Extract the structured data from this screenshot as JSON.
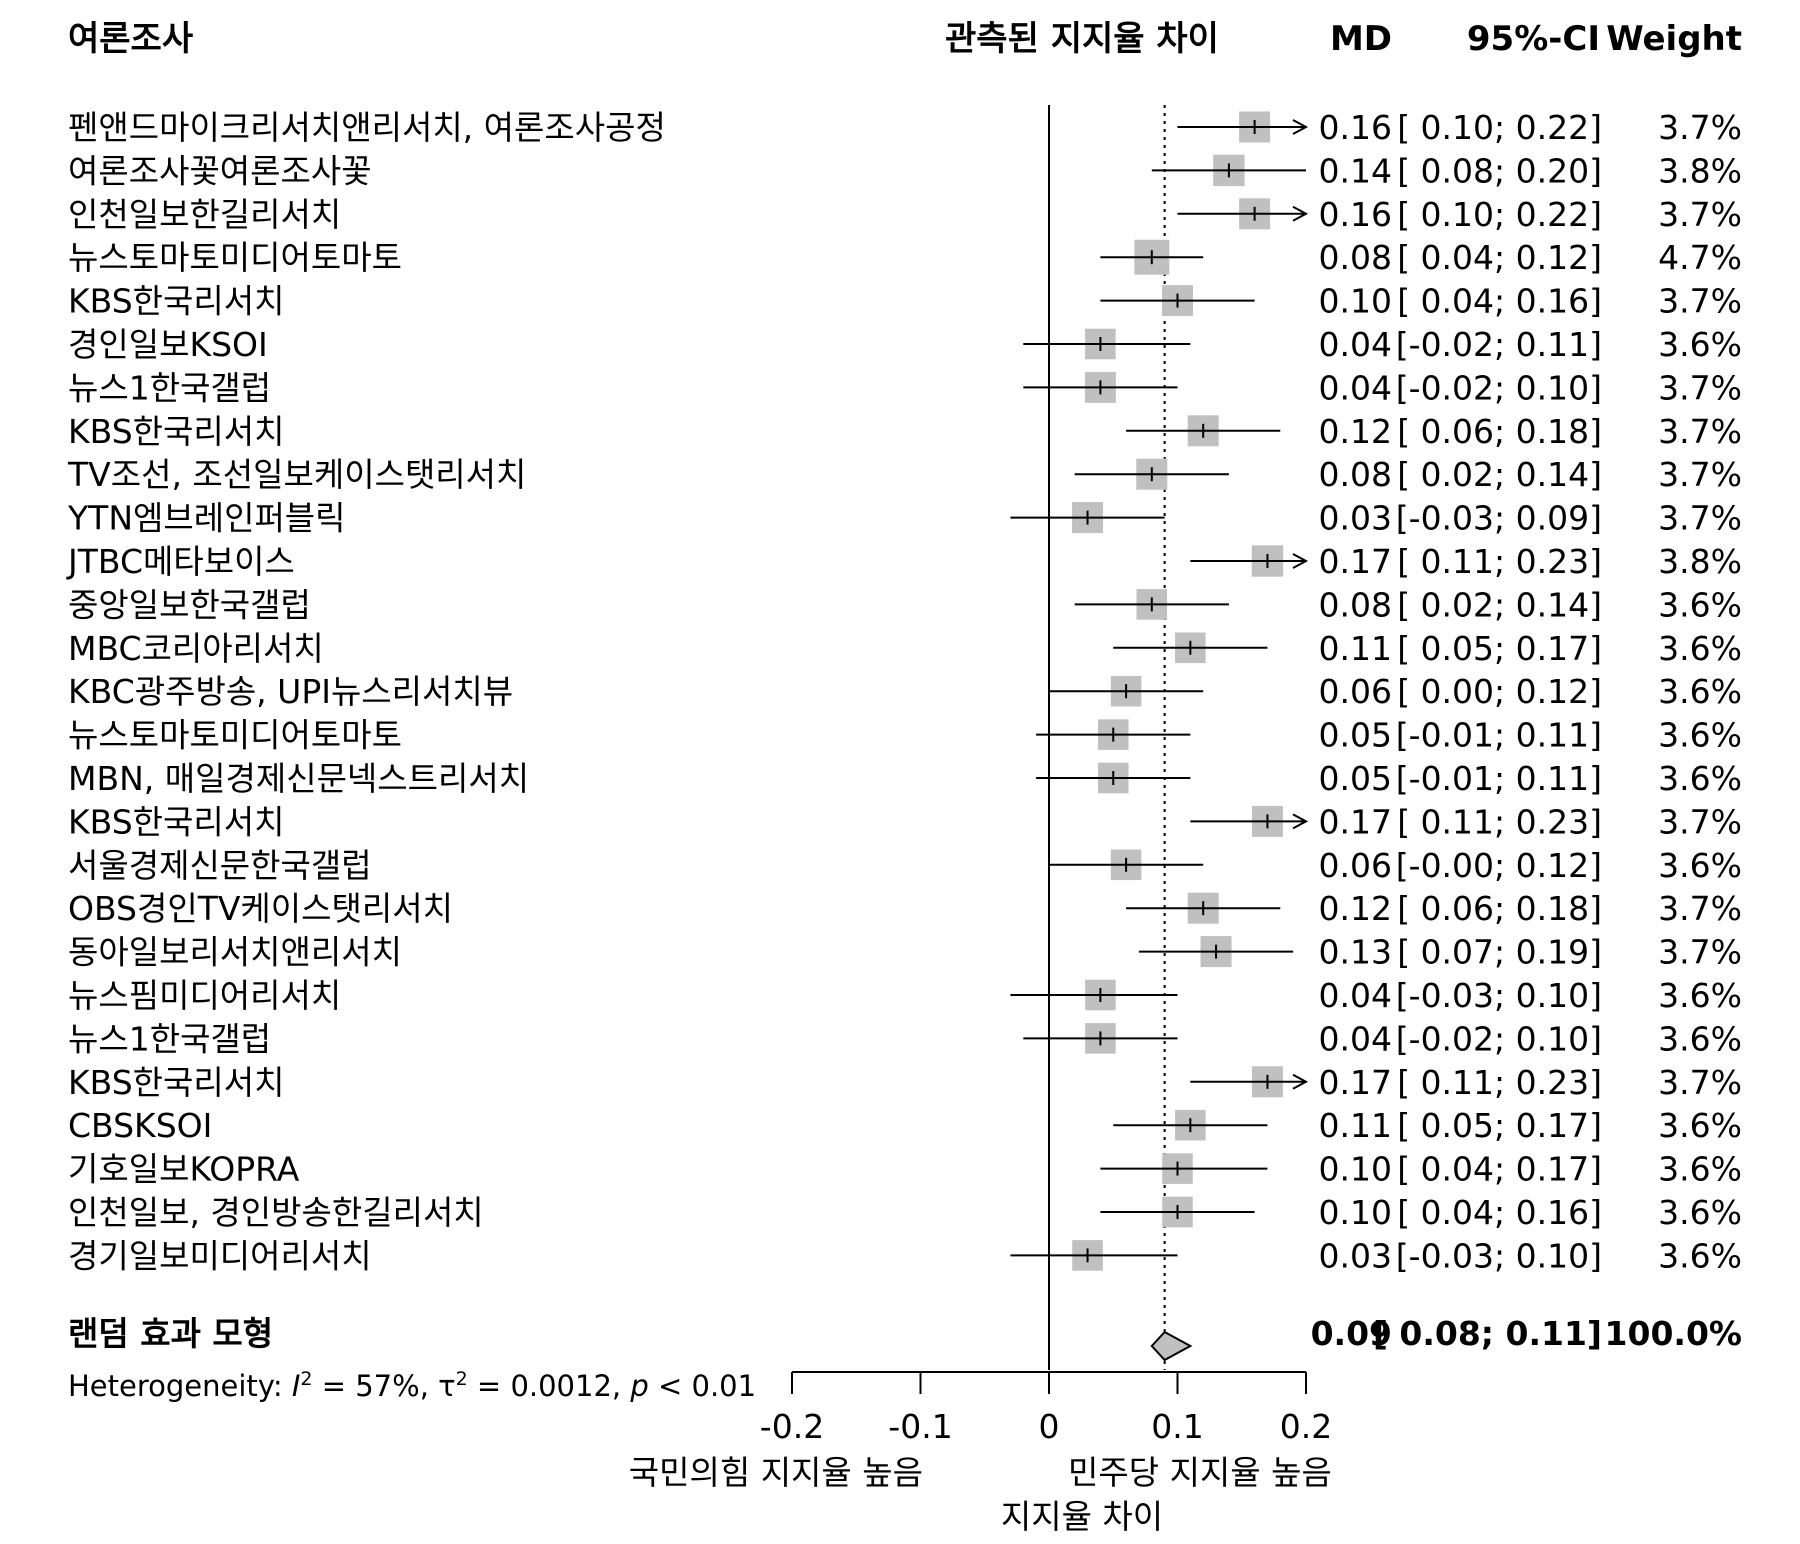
{
  "chart_data": {
    "type": "forest",
    "headers": {
      "study": "여론조사",
      "effect": "관측된 지지율 차이",
      "md": "MD",
      "ci": "95%-CI",
      "weight": "Weight"
    },
    "xlim": [
      -0.2,
      0.2
    ],
    "x_ticks": [
      "-0.2",
      "-0.1",
      "0",
      "0.1",
      "0.2"
    ],
    "tick_values": [
      -0.2,
      -0.1,
      0,
      0.1,
      0.2
    ],
    "ref_line": 0,
    "pooled_line": 0.09,
    "left_axis_label": "국민의힘 지지율 높음",
    "right_axis_label": "민주당 지지율 높음",
    "xlabel": "지지율 차이",
    "studies": [
      {
        "name": "펜앤드마이크리서치앤리서치, 여론조사공정",
        "md": 0.16,
        "lo": 0.1,
        "hi": 0.22,
        "weight": 3.7,
        "md_text": "0.16",
        "ci_text": "[ 0.10; 0.22]",
        "w_text": "3.7%"
      },
      {
        "name": "여론조사꽃여론조사꽃",
        "md": 0.14,
        "lo": 0.08,
        "hi": 0.2,
        "weight": 3.8,
        "md_text": "0.14",
        "ci_text": "[ 0.08; 0.20]",
        "w_text": "3.8%"
      },
      {
        "name": "인천일보한길리서치",
        "md": 0.16,
        "lo": 0.1,
        "hi": 0.22,
        "weight": 3.7,
        "md_text": "0.16",
        "ci_text": "[ 0.10; 0.22]",
        "w_text": "3.7%"
      },
      {
        "name": "뉴스토마토미디어토마토",
        "md": 0.08,
        "lo": 0.04,
        "hi": 0.12,
        "weight": 4.7,
        "md_text": "0.08",
        "ci_text": "[ 0.04; 0.12]",
        "w_text": "4.7%"
      },
      {
        "name": "KBS한국리서치",
        "md": 0.1,
        "lo": 0.04,
        "hi": 0.16,
        "weight": 3.7,
        "md_text": "0.10",
        "ci_text": "[ 0.04; 0.16]",
        "w_text": "3.7%"
      },
      {
        "name": "경인일보KSOI",
        "md": 0.04,
        "lo": -0.02,
        "hi": 0.11,
        "weight": 3.6,
        "md_text": "0.04",
        "ci_text": "[-0.02; 0.11]",
        "w_text": "3.6%"
      },
      {
        "name": "뉴스1한국갤럽",
        "md": 0.04,
        "lo": -0.02,
        "hi": 0.1,
        "weight": 3.7,
        "md_text": "0.04",
        "ci_text": "[-0.02; 0.10]",
        "w_text": "3.7%"
      },
      {
        "name": "KBS한국리서치",
        "md": 0.12,
        "lo": 0.06,
        "hi": 0.18,
        "weight": 3.7,
        "md_text": "0.12",
        "ci_text": "[ 0.06; 0.18]",
        "w_text": "3.7%"
      },
      {
        "name": "TV조선, 조선일보케이스탯리서치",
        "md": 0.08,
        "lo": 0.02,
        "hi": 0.14,
        "weight": 3.7,
        "md_text": "0.08",
        "ci_text": "[ 0.02; 0.14]",
        "w_text": "3.7%"
      },
      {
        "name": "YTN엠브레인퍼블릭",
        "md": 0.03,
        "lo": -0.03,
        "hi": 0.09,
        "weight": 3.7,
        "md_text": "0.03",
        "ci_text": "[-0.03; 0.09]",
        "w_text": "3.7%"
      },
      {
        "name": "JTBC메타보이스",
        "md": 0.17,
        "lo": 0.11,
        "hi": 0.23,
        "weight": 3.8,
        "md_text": "0.17",
        "ci_text": "[ 0.11; 0.23]",
        "w_text": "3.8%"
      },
      {
        "name": "중앙일보한국갤럽",
        "md": 0.08,
        "lo": 0.02,
        "hi": 0.14,
        "weight": 3.6,
        "md_text": "0.08",
        "ci_text": "[ 0.02; 0.14]",
        "w_text": "3.6%"
      },
      {
        "name": "MBC코리아리서치",
        "md": 0.11,
        "lo": 0.05,
        "hi": 0.17,
        "weight": 3.6,
        "md_text": "0.11",
        "ci_text": "[ 0.05; 0.17]",
        "w_text": "3.6%"
      },
      {
        "name": "KBC광주방송, UPI뉴스리서치뷰",
        "md": 0.06,
        "lo": 0.0,
        "hi": 0.12,
        "weight": 3.6,
        "md_text": "0.06",
        "ci_text": "[ 0.00; 0.12]",
        "w_text": "3.6%"
      },
      {
        "name": "뉴스토마토미디어토마토",
        "md": 0.05,
        "lo": -0.01,
        "hi": 0.11,
        "weight": 3.6,
        "md_text": "0.05",
        "ci_text": "[-0.01; 0.11]",
        "w_text": "3.6%"
      },
      {
        "name": "MBN, 매일경제신문넥스트리서치",
        "md": 0.05,
        "lo": -0.01,
        "hi": 0.11,
        "weight": 3.6,
        "md_text": "0.05",
        "ci_text": "[-0.01; 0.11]",
        "w_text": "3.6%"
      },
      {
        "name": "KBS한국리서치",
        "md": 0.17,
        "lo": 0.11,
        "hi": 0.23,
        "weight": 3.7,
        "md_text": "0.17",
        "ci_text": "[ 0.11; 0.23]",
        "w_text": "3.7%"
      },
      {
        "name": "서울경제신문한국갤럽",
        "md": 0.06,
        "lo": -0.0,
        "hi": 0.12,
        "weight": 3.6,
        "md_text": "0.06",
        "ci_text": "[-0.00; 0.12]",
        "w_text": "3.6%"
      },
      {
        "name": "OBS경인TV케이스탯리서치",
        "md": 0.12,
        "lo": 0.06,
        "hi": 0.18,
        "weight": 3.7,
        "md_text": "0.12",
        "ci_text": "[ 0.06; 0.18]",
        "w_text": "3.7%"
      },
      {
        "name": "동아일보리서치앤리서치",
        "md": 0.13,
        "lo": 0.07,
        "hi": 0.19,
        "weight": 3.7,
        "md_text": "0.13",
        "ci_text": "[ 0.07; 0.19]",
        "w_text": "3.7%"
      },
      {
        "name": "뉴스핌미디어리서치",
        "md": 0.04,
        "lo": -0.03,
        "hi": 0.1,
        "weight": 3.6,
        "md_text": "0.04",
        "ci_text": "[-0.03; 0.10]",
        "w_text": "3.6%"
      },
      {
        "name": "뉴스1한국갤럽",
        "md": 0.04,
        "lo": -0.02,
        "hi": 0.1,
        "weight": 3.6,
        "md_text": "0.04",
        "ci_text": "[-0.02; 0.10]",
        "w_text": "3.6%"
      },
      {
        "name": "KBS한국리서치",
        "md": 0.17,
        "lo": 0.11,
        "hi": 0.23,
        "weight": 3.7,
        "md_text": "0.17",
        "ci_text": "[ 0.11; 0.23]",
        "w_text": "3.7%"
      },
      {
        "name": "CBSKSOI",
        "md": 0.11,
        "lo": 0.05,
        "hi": 0.17,
        "weight": 3.6,
        "md_text": "0.11",
        "ci_text": "[ 0.05; 0.17]",
        "w_text": "3.6%"
      },
      {
        "name": "기호일보KOPRA",
        "md": 0.1,
        "lo": 0.04,
        "hi": 0.17,
        "weight": 3.6,
        "md_text": "0.10",
        "ci_text": "[ 0.04; 0.17]",
        "w_text": "3.6%"
      },
      {
        "name": "인천일보, 경인방송한길리서치",
        "md": 0.1,
        "lo": 0.04,
        "hi": 0.16,
        "weight": 3.6,
        "md_text": "0.10",
        "ci_text": "[ 0.04; 0.16]",
        "w_text": "3.6%"
      },
      {
        "name": "경기일보미디어리서치",
        "md": 0.03,
        "lo": -0.03,
        "hi": 0.1,
        "weight": 3.6,
        "md_text": "0.03",
        "ci_text": "[-0.03; 0.10]",
        "w_text": "3.6%"
      }
    ],
    "pooled": {
      "name": "랜덤 효과 모형",
      "md": 0.09,
      "lo": 0.08,
      "hi": 0.11,
      "md_text": "0.09",
      "ci_text": "[ 0.08; 0.11]",
      "w_text": "100.0%"
    },
    "heterogeneity": {
      "prefix": "Heterogeneity: ",
      "i2_symbol": "I",
      "i2_value": " = 57%, ",
      "tau2_symbol": "τ",
      "tau2_value": " = 0.0012, ",
      "p_symbol": "p",
      "p_value": " < 0.01",
      "superscript": "2"
    },
    "colors": {
      "box": "#c0c0c0",
      "diamond": "#c0c0c0",
      "line": "#000000"
    }
  }
}
